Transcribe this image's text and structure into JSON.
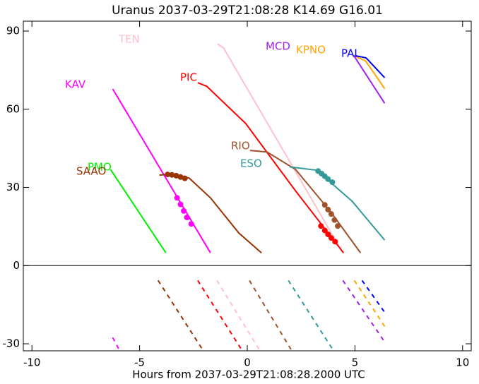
{
  "chart_data": {
    "type": "line",
    "title": "Uranus 2037-03-29T21:08:28  K14.69  G16.01",
    "x_label": "Hours from 2037-03-29T21:08:28.2000 UTC",
    "xlim": [
      -10.4,
      10.4
    ],
    "ylim": [
      -32.7,
      93.8
    ],
    "xticks": [
      -10,
      -5,
      0,
      5,
      10
    ],
    "yticks": [
      -30,
      0,
      30,
      60,
      90
    ],
    "series": [
      {
        "name": "KAV",
        "color": "#ff00ff",
        "x": [
          -6.25,
          -1.71
        ],
        "values": [
          67.8,
          4.9
        ],
        "dots_x": [
          -3.26,
          -3.1,
          -2.95,
          -2.8,
          -2.6
        ],
        "dots_values": [
          26,
          23.5,
          21,
          18.5,
          16
        ],
        "dashed_x": [
          -6.25,
          -5.92
        ],
        "dashed_values": [
          -27.6,
          -32.7
        ]
      },
      {
        "name": "PMO",
        "color": "#00ee00",
        "x": [
          -6.35,
          -3.78
        ],
        "values": [
          36.9,
          4.9
        ],
        "dots_x": [],
        "dots_values": [],
        "dashed_x": [],
        "dashed_values": []
      },
      {
        "name": "SAAO",
        "color": "#993300",
        "x": [
          -4.08,
          -3.52,
          -2.7,
          -1.71,
          -0.39,
          0.66
        ],
        "values": [
          34.7,
          35.2,
          33.6,
          26,
          12.5,
          4.9
        ],
        "dots_x": [
          -3.7,
          -3.5,
          -3.3,
          -3.1,
          -2.9
        ],
        "dots_values": [
          35,
          34.8,
          34.5,
          34,
          33.5
        ],
        "dashed_x": [
          -4.14,
          -2.04
        ],
        "dashed_values": [
          -5.7,
          -32.7
        ]
      },
      {
        "name": "TEN",
        "color": "#ffc0cb",
        "x": [
          -1.38,
          -1.1,
          4.44
        ],
        "values": [
          85.1,
          83.5,
          4.9
        ],
        "dots_x": [],
        "dots_values": [],
        "dashed_x": [
          -1.41,
          0.59
        ],
        "dashed_values": [
          -5.7,
          -32.7
        ]
      },
      {
        "name": "PIC",
        "color": "#ff0000",
        "x": [
          -2.3,
          -1.88,
          -0.07,
          2.24,
          4.47
        ],
        "values": [
          70.2,
          68.8,
          54.5,
          28.7,
          4.9
        ],
        "dots_x": [
          3.42,
          3.6,
          3.75,
          3.9,
          4.08
        ],
        "dots_values": [
          15.2,
          13.5,
          12,
          10.6,
          9.2
        ],
        "dashed_x": [
          -2.3,
          -0.23
        ],
        "dashed_values": [
          -5.7,
          -32.7
        ]
      },
      {
        "name": "RIO",
        "color": "#a0522d",
        "x": [
          0.13,
          0.92,
          2.24,
          3.88,
          5.26
        ],
        "values": [
          44.2,
          43.6,
          36.9,
          20.6,
          4.9
        ],
        "dots_x": [
          3.6,
          3.75,
          3.9,
          4.05,
          4.2
        ],
        "dots_values": [
          23.3,
          21.5,
          19.8,
          17.5,
          15.2
        ],
        "dashed_x": [
          0.1,
          2.07
        ],
        "dashed_values": [
          -5.7,
          -32.7
        ]
      },
      {
        "name": "ESO",
        "color": "#339999",
        "x": [
          1.97,
          3.22,
          4.87,
          6.38
        ],
        "values": [
          37.9,
          36.6,
          24.7,
          9.8
        ],
        "dots_x": [
          3.29,
          3.45,
          3.6,
          3.75,
          3.95
        ],
        "dots_values": [
          36.3,
          35.3,
          34.3,
          33.2,
          32
        ],
        "dashed_x": [
          1.91,
          4.01
        ],
        "dashed_values": [
          -5.7,
          -32.7
        ]
      },
      {
        "name": "MCD",
        "color": "#a020f0",
        "x": [
          4.93,
          6.38
        ],
        "values": [
          80.8,
          62.3
        ],
        "dots_x": [],
        "dots_values": [],
        "dashed_x": [
          4.44,
          6.38
        ],
        "dashed_values": [
          -5.7,
          -29.3
        ]
      },
      {
        "name": "KPNO",
        "color": "#ffa500",
        "x": [
          5.03,
          5.5,
          6.38
        ],
        "values": [
          80.3,
          78.5,
          67.9
        ],
        "dots_x": [],
        "dots_values": [],
        "dashed_x": [
          4.97,
          6.38
        ],
        "dashed_values": [
          -5.7,
          -23.3
        ]
      },
      {
        "name": "PAL",
        "color": "#0000ff",
        "x": [
          5.0,
          5.52,
          6.38
        ],
        "values": [
          80.6,
          79.7,
          72.1
        ],
        "dots_x": [],
        "dots_values": [],
        "dashed_x": [
          5.33,
          6.38
        ],
        "dashed_values": [
          -5.7,
          -17.9
        ]
      }
    ]
  }
}
